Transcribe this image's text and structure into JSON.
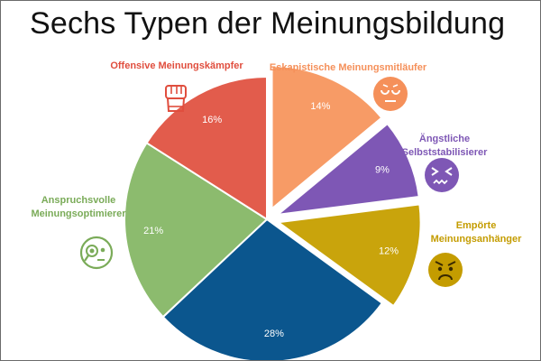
{
  "chart_data": {
    "type": "pie",
    "title": "Sechs Typen der Meinungsbildung",
    "slices": [
      {
        "label": [
          "Eskapistische Meinungsmitläufer"
        ],
        "value": 14,
        "value_label": "14%",
        "color": "#f79b66",
        "icon": "sad-face-icon",
        "exploded": true
      },
      {
        "label": [
          "Ängstliche",
          "Selbststabilisierer"
        ],
        "value": 9,
        "value_label": "9%",
        "color": "#7e57b5",
        "icon": "anxious-face-icon",
        "exploded": true
      },
      {
        "label": [
          "Empörte",
          "Meinungsanhänger"
        ],
        "value": 12,
        "value_label": "12%",
        "color": "#c9a40c",
        "icon": "angry-face-icon",
        "exploded": true
      },
      {
        "label": [],
        "value": 28,
        "value_label": "28%",
        "color": "#0b568e",
        "icon": "",
        "exploded": false
      },
      {
        "label": [
          "Anspruchsvolle",
          "Meinungsoptimierer"
        ],
        "value": 21,
        "value_label": "21%",
        "color": "#8cbb6e",
        "icon": "magnifier-face-icon",
        "exploded": false
      },
      {
        "label": [
          "Offensive Meinungskämpfer"
        ],
        "value": 16,
        "value_label": "16%",
        "color": "#e25c4c",
        "icon": "raised-fist-icon",
        "exploded": false
      }
    ]
  }
}
